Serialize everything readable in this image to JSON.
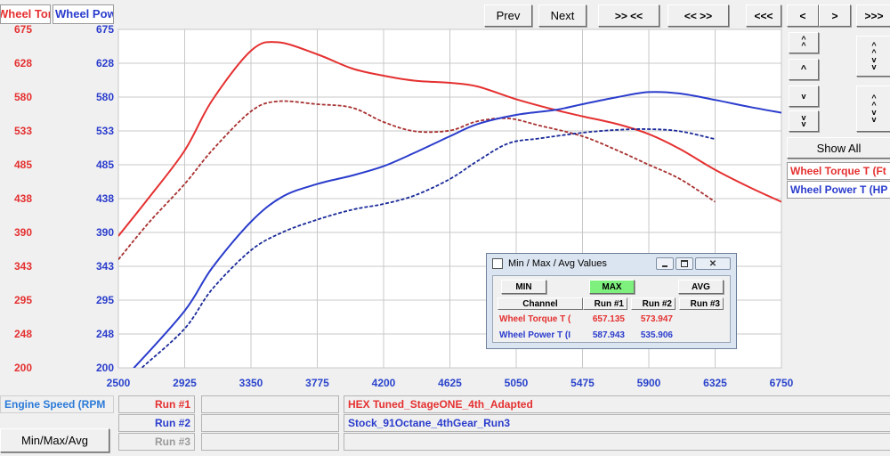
{
  "legend_top": {
    "torque_label": "Wheel Torque T",
    "power_label": "Wheel Power T"
  },
  "nav": {
    "prev": "Prev",
    "next": "Next",
    "zoom_in": ">> <<",
    "zoom_out": "<< >>",
    "first": "<<<",
    "back": "<",
    "forward": ">",
    "last": ">>>"
  },
  "side": {
    "show_all": "Show All",
    "torque_channel": "Wheel Torque T (Ft",
    "power_channel": "Wheel Power T (HP"
  },
  "bottom": {
    "x_channel": "Engine Speed (RPM",
    "min_max_avg_button": "Min/Max/Avg",
    "runs": [
      {
        "label": "Run #1",
        "name": "HEX Tuned_StageONE_4th_Adapted",
        "color": "#e53030"
      },
      {
        "label": "Run #2",
        "name": "Stock_91Octane_4thGear_Run3",
        "color": "#2a3ccc"
      },
      {
        "label": "Run #3",
        "name": "",
        "color": "#9a9a9a"
      }
    ]
  },
  "dialog": {
    "title": "Min / Max / Avg Values",
    "min_button": "MIN",
    "max_button": "MAX",
    "avg_button": "AVG",
    "headers": [
      "Channel",
      "Run #1",
      "Run #2",
      "Run #3"
    ],
    "rows": [
      {
        "channel": "Wheel Torque T (",
        "run1": "657.135",
        "run2": "573.947",
        "run3": "",
        "color": "#e53030"
      },
      {
        "channel": "Wheel Power T (I",
        "run1": "587.943",
        "run2": "535.906",
        "run3": "",
        "color": "#2a3ccc"
      }
    ]
  },
  "chart_data": {
    "type": "line",
    "xlim": [
      2500,
      6750
    ],
    "ylim": [
      200,
      675
    ],
    "x_ticks": [
      "2500",
      "2925",
      "3350",
      "3775",
      "4200",
      "4625",
      "5050",
      "5475",
      "5900",
      "6325",
      "6750"
    ],
    "y_ticks_left": [
      "675",
      "628",
      "580",
      "533",
      "485",
      "438",
      "390",
      "343",
      "295",
      "248",
      "200"
    ],
    "y_ticks_right": [
      "675",
      "628",
      "580",
      "533",
      "485",
      "438",
      "390",
      "343",
      "295",
      "248",
      "200"
    ],
    "grid": true,
    "series": [
      {
        "name": "Wheel Torque T",
        "run": "Run #1",
        "color": "#e53030",
        "dashed": false,
        "x": [
          2500,
          2700,
          2925,
          3100,
          3350,
          3520,
          3775,
          4000,
          4200,
          4400,
          4625,
          4800,
          5050,
          5300,
          5475,
          5700,
          5900,
          6100,
          6325,
          6550,
          6750
        ],
        "y": [
          385,
          440,
          505,
          575,
          645,
          657,
          640,
          620,
          610,
          603,
          600,
          595,
          577,
          562,
          553,
          542,
          528,
          507,
          478,
          453,
          433
        ]
      },
      {
        "name": "Wheel Torque T",
        "run": "Run #2",
        "color": "#a83030",
        "dashed": true,
        "x": [
          2500,
          2700,
          2925,
          3100,
          3350,
          3520,
          3775,
          4000,
          4200,
          4400,
          4625,
          4800,
          5000,
          5200,
          5475,
          5700,
          5900,
          6100,
          6325
        ],
        "y": [
          352,
          405,
          458,
          505,
          560,
          574,
          570,
          565,
          545,
          532,
          533,
          546,
          550,
          540,
          525,
          505,
          485,
          465,
          433
        ]
      },
      {
        "name": "Wheel Power T",
        "run": "Run #1",
        "color": "#2a3ccc",
        "dashed": false,
        "x": [
          2500,
          2600,
          2925,
          3100,
          3350,
          3550,
          3775,
          4000,
          4200,
          4400,
          4625,
          4800,
          5050,
          5300,
          5475,
          5700,
          5900,
          6100,
          6325,
          6550,
          6750
        ],
        "y": [
          180,
          200,
          280,
          340,
          405,
          440,
          458,
          470,
          483,
          502,
          525,
          542,
          555,
          562,
          570,
          580,
          587,
          585,
          576,
          566,
          558
        ]
      },
      {
        "name": "Wheel Power T",
        "run": "Run #2",
        "color": "#1a2a99",
        "dashed": true,
        "x": [
          2500,
          2650,
          2925,
          3100,
          3350,
          3550,
          3775,
          4000,
          4200,
          4400,
          4625,
          4800,
          5000,
          5200,
          5475,
          5700,
          5900,
          6100,
          6325
        ],
        "y": [
          170,
          200,
          255,
          310,
          365,
          390,
          408,
          422,
          430,
          442,
          465,
          490,
          515,
          522,
          530,
          534,
          535,
          532,
          521
        ]
      }
    ]
  }
}
